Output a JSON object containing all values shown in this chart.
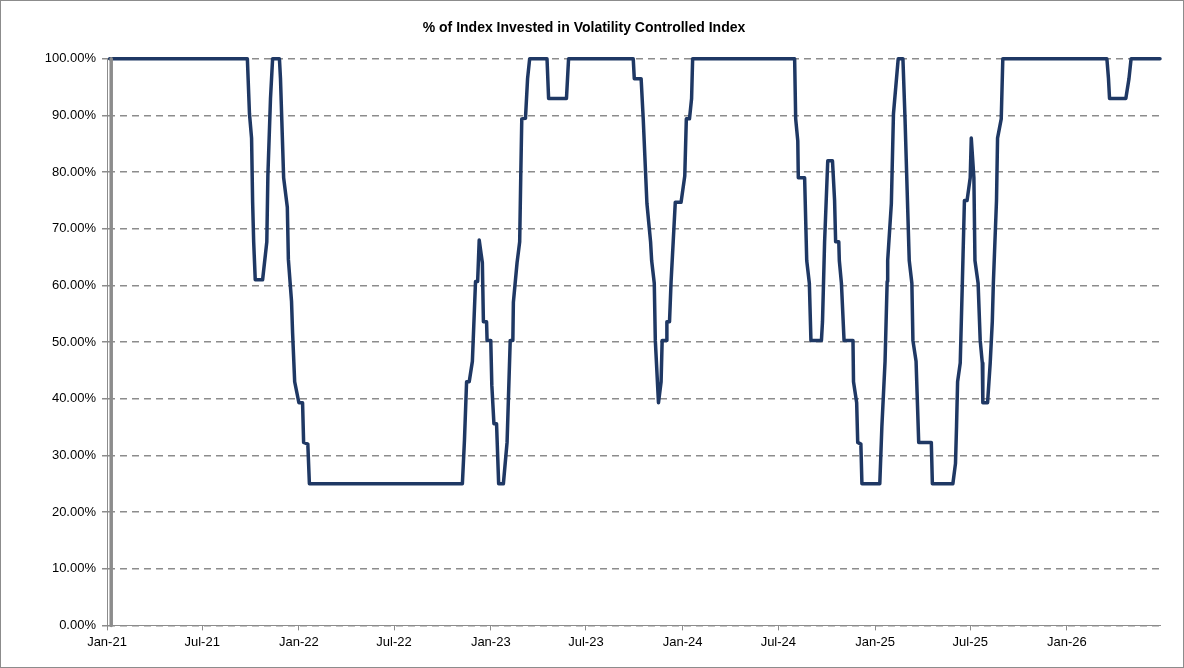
{
  "chart_data": {
    "type": "line",
    "title": "% of Index Invested in Volatility Controlled Index",
    "xlim": [
      "2021-01-01",
      "2026-06-27"
    ],
    "xticks": [
      {
        "value": "2021-01-01",
        "label": "Jan-21"
      },
      {
        "value": "2021-07-01",
        "label": "Jul-21"
      },
      {
        "value": "2022-01-01",
        "label": "Jan-22"
      },
      {
        "value": "2022-07-01",
        "label": "Jul-22"
      },
      {
        "value": "2023-01-01",
        "label": "Jan-23"
      },
      {
        "value": "2023-07-01",
        "label": "Jul-23"
      },
      {
        "value": "2024-01-01",
        "label": "Jan-24"
      },
      {
        "value": "2024-07-01",
        "label": "Jul-24"
      },
      {
        "value": "2025-01-01",
        "label": "Jan-25"
      },
      {
        "value": "2025-07-01",
        "label": "Jul-25"
      },
      {
        "value": "2026-01-01",
        "label": "Jan-26"
      }
    ],
    "ylim": [
      0,
      100
    ],
    "yticks": [
      {
        "value": 0,
        "label": "0.00%"
      },
      {
        "value": 10,
        "label": "10.00%"
      },
      {
        "value": 20,
        "label": "20.00%"
      },
      {
        "value": 30,
        "label": "30.00%"
      },
      {
        "value": 40,
        "label": "40.00%"
      },
      {
        "value": 50,
        "label": "50.00%"
      },
      {
        "value": 60,
        "label": "60.00%"
      },
      {
        "value": 70,
        "label": "70.00%"
      },
      {
        "value": 80,
        "label": "80.00%"
      },
      {
        "value": 90,
        "label": "90.00%"
      },
      {
        "value": 100,
        "label": "100.00%"
      }
    ],
    "grid": "y",
    "legend": false,
    "marker": "none",
    "line_style": "solid",
    "series": [
      {
        "color": "#8c8c8c",
        "x": [
          "2021-01-09",
          "2021-01-09"
        ],
        "values": [
          0,
          100
        ]
      },
      {
        "color": "#1f3864",
        "x": [
          "2021-01-06",
          "2021-09-25",
          "2021-09-29",
          "2021-10-03",
          "2021-10-05",
          "2021-10-07",
          "2021-10-10",
          "2021-10-24",
          "2021-11-01",
          "2021-11-03",
          "2021-11-08",
          "2021-11-12",
          "2021-11-25",
          "2021-11-27",
          "2021-12-03",
          "2021-12-10",
          "2021-12-12",
          "2021-12-18",
          "2021-12-20",
          "2021-12-24",
          "2022-01-01",
          "2022-01-08",
          "2022-01-10",
          "2022-01-18",
          "2022-01-21",
          "2022-11-08",
          "2022-11-12",
          "2022-11-16",
          "2022-11-21",
          "2022-11-27",
          "2022-12-03",
          "2022-12-07",
          "2022-12-10",
          "2022-12-16",
          "2022-12-18",
          "2022-12-24",
          "2022-12-25",
          "2023-01-01",
          "2023-01-03",
          "2023-01-07",
          "2023-01-12",
          "2023-01-16",
          "2023-01-25",
          "2023-02-01",
          "2023-02-07",
          "2023-02-12",
          "2023-02-13",
          "2023-02-20",
          "2023-02-25",
          "2023-02-27",
          "2023-03-01",
          "2023-03-08",
          "2023-03-12",
          "2023-03-16",
          "2023-04-18",
          "2023-04-21",
          "2023-05-25",
          "2023-05-29",
          "2023-09-29",
          "2023-10-01",
          "2023-10-14",
          "2023-10-18",
          "2023-10-25",
          "2023-11-01",
          "2023-11-03",
          "2023-11-08",
          "2023-11-10",
          "2023-11-16",
          "2023-11-21",
          "2023-11-23",
          "2023-12-01",
          "2023-12-02",
          "2023-12-07",
          "2023-12-10",
          "2023-12-14",
          "2023-12-18",
          "2023-12-29",
          "2024-01-05",
          "2024-01-08",
          "2024-01-14",
          "2024-01-18",
          "2024-01-20",
          "2024-08-01",
          "2024-08-03",
          "2024-08-07",
          "2024-08-08",
          "2024-08-20",
          "2024-08-24",
          "2024-08-29",
          "2024-09-01",
          "2024-09-21",
          "2024-09-23",
          "2024-09-27",
          "2024-10-03",
          "2024-10-12",
          "2024-10-16",
          "2024-10-18",
          "2024-10-24",
          "2024-10-25",
          "2024-10-29",
          "2024-11-03",
          "2024-11-20",
          "2024-11-21",
          "2024-11-27",
          "2024-11-29",
          "2024-12-05",
          "2024-12-07",
          "2025-01-10",
          "2025-01-14",
          "2025-01-20",
          "2025-01-24",
          "2025-01-25",
          "2025-02-01",
          "2025-02-05",
          "2025-02-14",
          "2025-02-23",
          "2025-02-27",
          "2025-03-03",
          "2025-03-07",
          "2025-03-12",
          "2025-03-14",
          "2025-03-20",
          "2025-03-25",
          "2025-04-18",
          "2025-04-20",
          "2025-05-29",
          "2025-06-03",
          "2025-06-05",
          "2025-06-07",
          "2025-06-12",
          "2025-06-16",
          "2025-06-20",
          "2025-06-25",
          "2025-07-01",
          "2025-07-03",
          "2025-07-08",
          "2025-07-10",
          "2025-07-16",
          "2025-07-20",
          "2025-07-24",
          "2025-07-25",
          "2025-08-03",
          "2025-08-08",
          "2025-08-12",
          "2025-08-14",
          "2025-08-20",
          "2025-08-22",
          "2025-08-29",
          "2025-09-01",
          "2026-03-18",
          "2026-03-21",
          "2026-03-23",
          "2026-04-23",
          "2026-04-29",
          "2026-05-03",
          "2026-06-27"
        ],
        "values": [
          100,
          100,
          90.3,
          86,
          74.7,
          67.7,
          61,
          61,
          67.7,
          79.3,
          93,
          100,
          100,
          96.5,
          79,
          73.8,
          64.6,
          57.2,
          51.7,
          43,
          39.3,
          39.3,
          32.3,
          32,
          25,
          25,
          32.8,
          43,
          43,
          46.6,
          60.7,
          60.7,
          68,
          64,
          53.6,
          53.6,
          50.3,
          50.3,
          42.4,
          35.6,
          35.6,
          25,
          25,
          32.3,
          50.3,
          50.3,
          57,
          64,
          67.7,
          79,
          89.4,
          89.5,
          96.5,
          100,
          100,
          93,
          93,
          100,
          100,
          96.5,
          96.5,
          89.4,
          74.5,
          67.7,
          64.4,
          60.4,
          50.3,
          39.3,
          43,
          50.3,
          50.3,
          53.6,
          53.6,
          60.7,
          67.7,
          74.7,
          74.7,
          79.3,
          89.4,
          89.4,
          93,
          100,
          100,
          89.4,
          85.5,
          79,
          79,
          64.4,
          60.4,
          50.3,
          50.3,
          53.6,
          67.7,
          82,
          82,
          75,
          67.7,
          67.7,
          64.4,
          60.4,
          50.3,
          50.3,
          43,
          39.3,
          32.3,
          32,
          25,
          25,
          35.2,
          46.6,
          60.7,
          64.4,
          74.5,
          90.3,
          100,
          100,
          89.4,
          76.9,
          64.4,
          60.4,
          50.3,
          46.6,
          32.3,
          32.3,
          25,
          25,
          28.6,
          35.2,
          43,
          46.3,
          60.4,
          75,
          75,
          79,
          86,
          79,
          64.4,
          60.4,
          50.3,
          46.3,
          39.3,
          39.3,
          46.3,
          53.6,
          60.4,
          75,
          86,
          89.4,
          100,
          100,
          96.5,
          93,
          93,
          96.5,
          100,
          100
        ]
      }
    ]
  }
}
